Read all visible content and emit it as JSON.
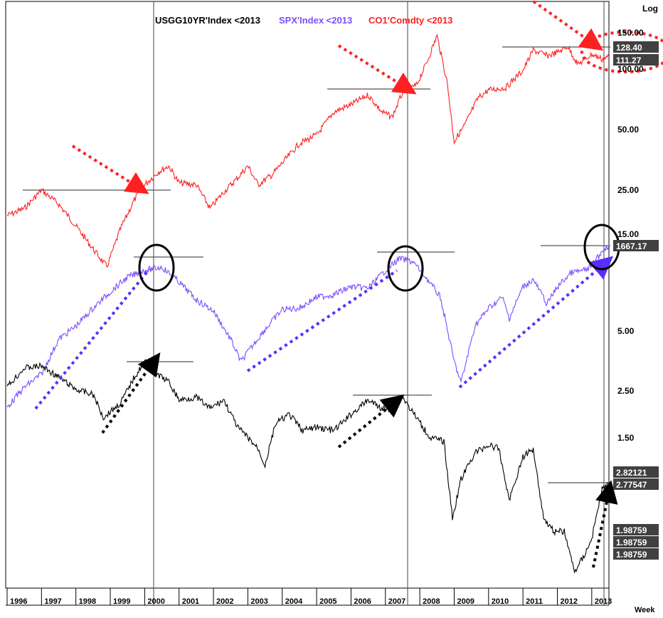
{
  "chart_data": {
    "type": "line",
    "scale_label": "Log",
    "period_label": "Week",
    "legend": [
      {
        "text": "USGG10YR'Index  <2013",
        "color": "#000000"
      },
      {
        "text": "SPX'Index  <2013",
        "color": "#7b4dff"
      },
      {
        "text": "CO1'Comdty  <2013",
        "color": "#ff2020"
      }
    ],
    "x_labels": [
      "1996",
      "1997",
      "1998",
      "1999",
      "2000",
      "2001",
      "2002",
      "2003",
      "2004",
      "2005",
      "2006",
      "2007",
      "2008",
      "2009",
      "2010",
      "2011",
      "2012",
      "2013"
    ],
    "y_ticks": [
      "150.00",
      "100.00",
      "50.00",
      "25.00",
      "15.00",
      "5.00",
      "2.50",
      "1.50"
    ],
    "price_badges": [
      "128.40",
      "111.27",
      "1667.17",
      "2.82121",
      "2.77547",
      "1.98759",
      "1.98759",
      "1.98759"
    ],
    "series": [
      {
        "ticker": "CO1'Comdty",
        "color": "#ff2020",
        "x": [
          1996.0,
          1996.5,
          1997.0,
          1997.5,
          1998.0,
          1998.5,
          1998.9,
          1999.3,
          1999.7,
          2000.0,
          2000.4,
          2000.7,
          2001.0,
          2001.5,
          2001.9,
          2002.3,
          2002.7,
          2003.0,
          2003.3,
          2003.7,
          2004.0,
          2004.5,
          2005.0,
          2005.5,
          2006.0,
          2006.5,
          2006.9,
          2007.2,
          2007.5,
          2007.9,
          2008.2,
          2008.5,
          2008.8,
          2009.0,
          2009.3,
          2009.7,
          2010.0,
          2010.5,
          2011.0,
          2011.3,
          2011.7,
          2012.0,
          2012.3,
          2012.6,
          2013.0,
          2013.3,
          2013.5
        ],
        "y": [
          18.5,
          20.0,
          24.5,
          21.0,
          16.5,
          12.8,
          10.5,
          16.0,
          22.0,
          26.0,
          30.0,
          32.0,
          26.5,
          26.0,
          20.0,
          24.0,
          28.0,
          32.0,
          26.0,
          29.0,
          33.0,
          41.0,
          45.0,
          58.0,
          63.0,
          70.0,
          58.0,
          55.0,
          72.0,
          78.0,
          100.0,
          135.0,
          80.0,
          42.0,
          50.0,
          68.0,
          74.0,
          76.0,
          92.0,
          115.0,
          108.0,
          112.0,
          120.0,
          98.0,
          110.0,
          104.0,
          107.0
        ]
      },
      {
        "ticker": "SPX'Index",
        "color": "#7b4dff",
        "x": [
          1996.0,
          1996.5,
          1997.0,
          1997.5,
          1998.0,
          1998.5,
          1999.0,
          1999.5,
          2000.0,
          2000.5,
          2001.0,
          2001.5,
          2002.0,
          2002.5,
          2002.8,
          2003.0,
          2003.5,
          2004.0,
          2004.5,
          2005.0,
          2005.5,
          2006.0,
          2006.5,
          2007.0,
          2007.4,
          2007.8,
          2008.2,
          2008.6,
          2009.0,
          2009.2,
          2009.6,
          2010.0,
          2010.4,
          2010.6,
          2011.0,
          2011.3,
          2011.7,
          2012.0,
          2012.4,
          2012.8,
          2013.0,
          2013.3,
          2013.5
        ],
        "y": [
          600,
          680,
          740,
          920,
          1000,
          1120,
          1240,
          1360,
          1420,
          1450,
          1320,
          1180,
          1100,
          920,
          800,
          850,
          980,
          1110,
          1120,
          1200,
          1220,
          1280,
          1270,
          1420,
          1530,
          1500,
          1350,
          1200,
          800,
          700,
          1000,
          1120,
          1200,
          1050,
          1280,
          1340,
          1150,
          1280,
          1400,
          1420,
          1460,
          1600,
          1667
        ]
      },
      {
        "ticker": "USGG10YR'Index",
        "color": "#000000",
        "x": [
          1996.0,
          1996.5,
          1997.0,
          1997.5,
          1998.0,
          1998.5,
          1998.8,
          1999.3,
          1999.7,
          2000.0,
          2000.3,
          2000.7,
          2001.0,
          2001.5,
          2001.9,
          2002.3,
          2002.7,
          2003.0,
          2003.3,
          2003.5,
          2003.8,
          2004.2,
          2004.6,
          2005.0,
          2005.5,
          2006.0,
          2006.5,
          2006.9,
          2007.2,
          2007.5,
          2007.9,
          2008.3,
          2008.7,
          2008.95,
          2009.2,
          2009.6,
          2010.0,
          2010.3,
          2010.6,
          2011.0,
          2011.3,
          2011.6,
          2011.9,
          2012.2,
          2012.5,
          2012.8,
          2013.0,
          2013.3,
          2013.5
        ],
        "y": [
          5.6,
          6.4,
          6.5,
          6.0,
          5.5,
          5.3,
          4.5,
          5.0,
          6.0,
          6.7,
          6.2,
          5.8,
          5.1,
          5.2,
          4.8,
          5.1,
          4.2,
          3.9,
          3.6,
          3.2,
          4.3,
          4.6,
          4.1,
          4.2,
          4.1,
          4.6,
          5.1,
          4.8,
          4.7,
          5.2,
          4.5,
          3.9,
          3.8,
          2.2,
          2.9,
          3.5,
          3.7,
          3.6,
          2.5,
          3.4,
          3.6,
          2.2,
          2.0,
          2.0,
          1.5,
          1.7,
          1.9,
          2.7,
          2.8
        ]
      }
    ]
  }
}
